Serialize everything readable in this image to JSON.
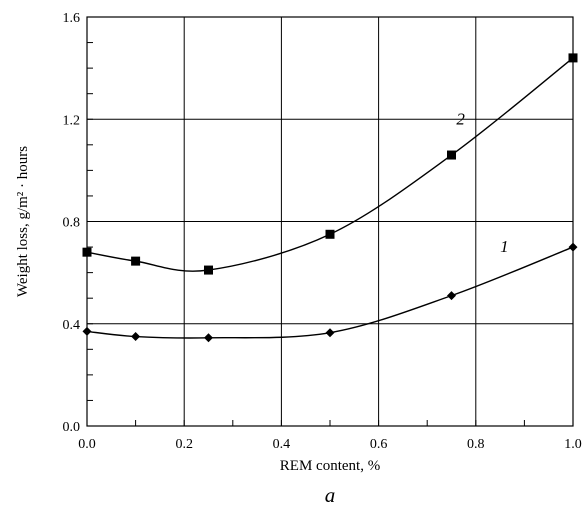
{
  "chart_data": {
    "type": "line",
    "xlabel": "REM content, %",
    "ylabel": "Weight loss, g/m² · hours",
    "caption": "a",
    "xlim": [
      0.0,
      1.0
    ],
    "ylim": [
      0.0,
      1.6
    ],
    "xticks": [
      "0.0",
      "0.2",
      "0.4",
      "0.6",
      "0.8",
      "1.0"
    ],
    "yticks": [
      "0.0",
      "0.4",
      "0.8",
      "1.2",
      "1.6"
    ],
    "grid": true,
    "series": [
      {
        "name": "1",
        "marker": "diamond",
        "x": [
          0.0,
          0.1,
          0.25,
          0.5,
          0.75,
          1.0
        ],
        "y": [
          0.37,
          0.35,
          0.345,
          0.365,
          0.51,
          0.7
        ]
      },
      {
        "name": "2",
        "marker": "square",
        "x": [
          0.0,
          0.1,
          0.25,
          0.5,
          0.75,
          1.0
        ],
        "y": [
          0.68,
          0.645,
          0.61,
          0.75,
          1.06,
          1.44
        ]
      }
    ]
  }
}
